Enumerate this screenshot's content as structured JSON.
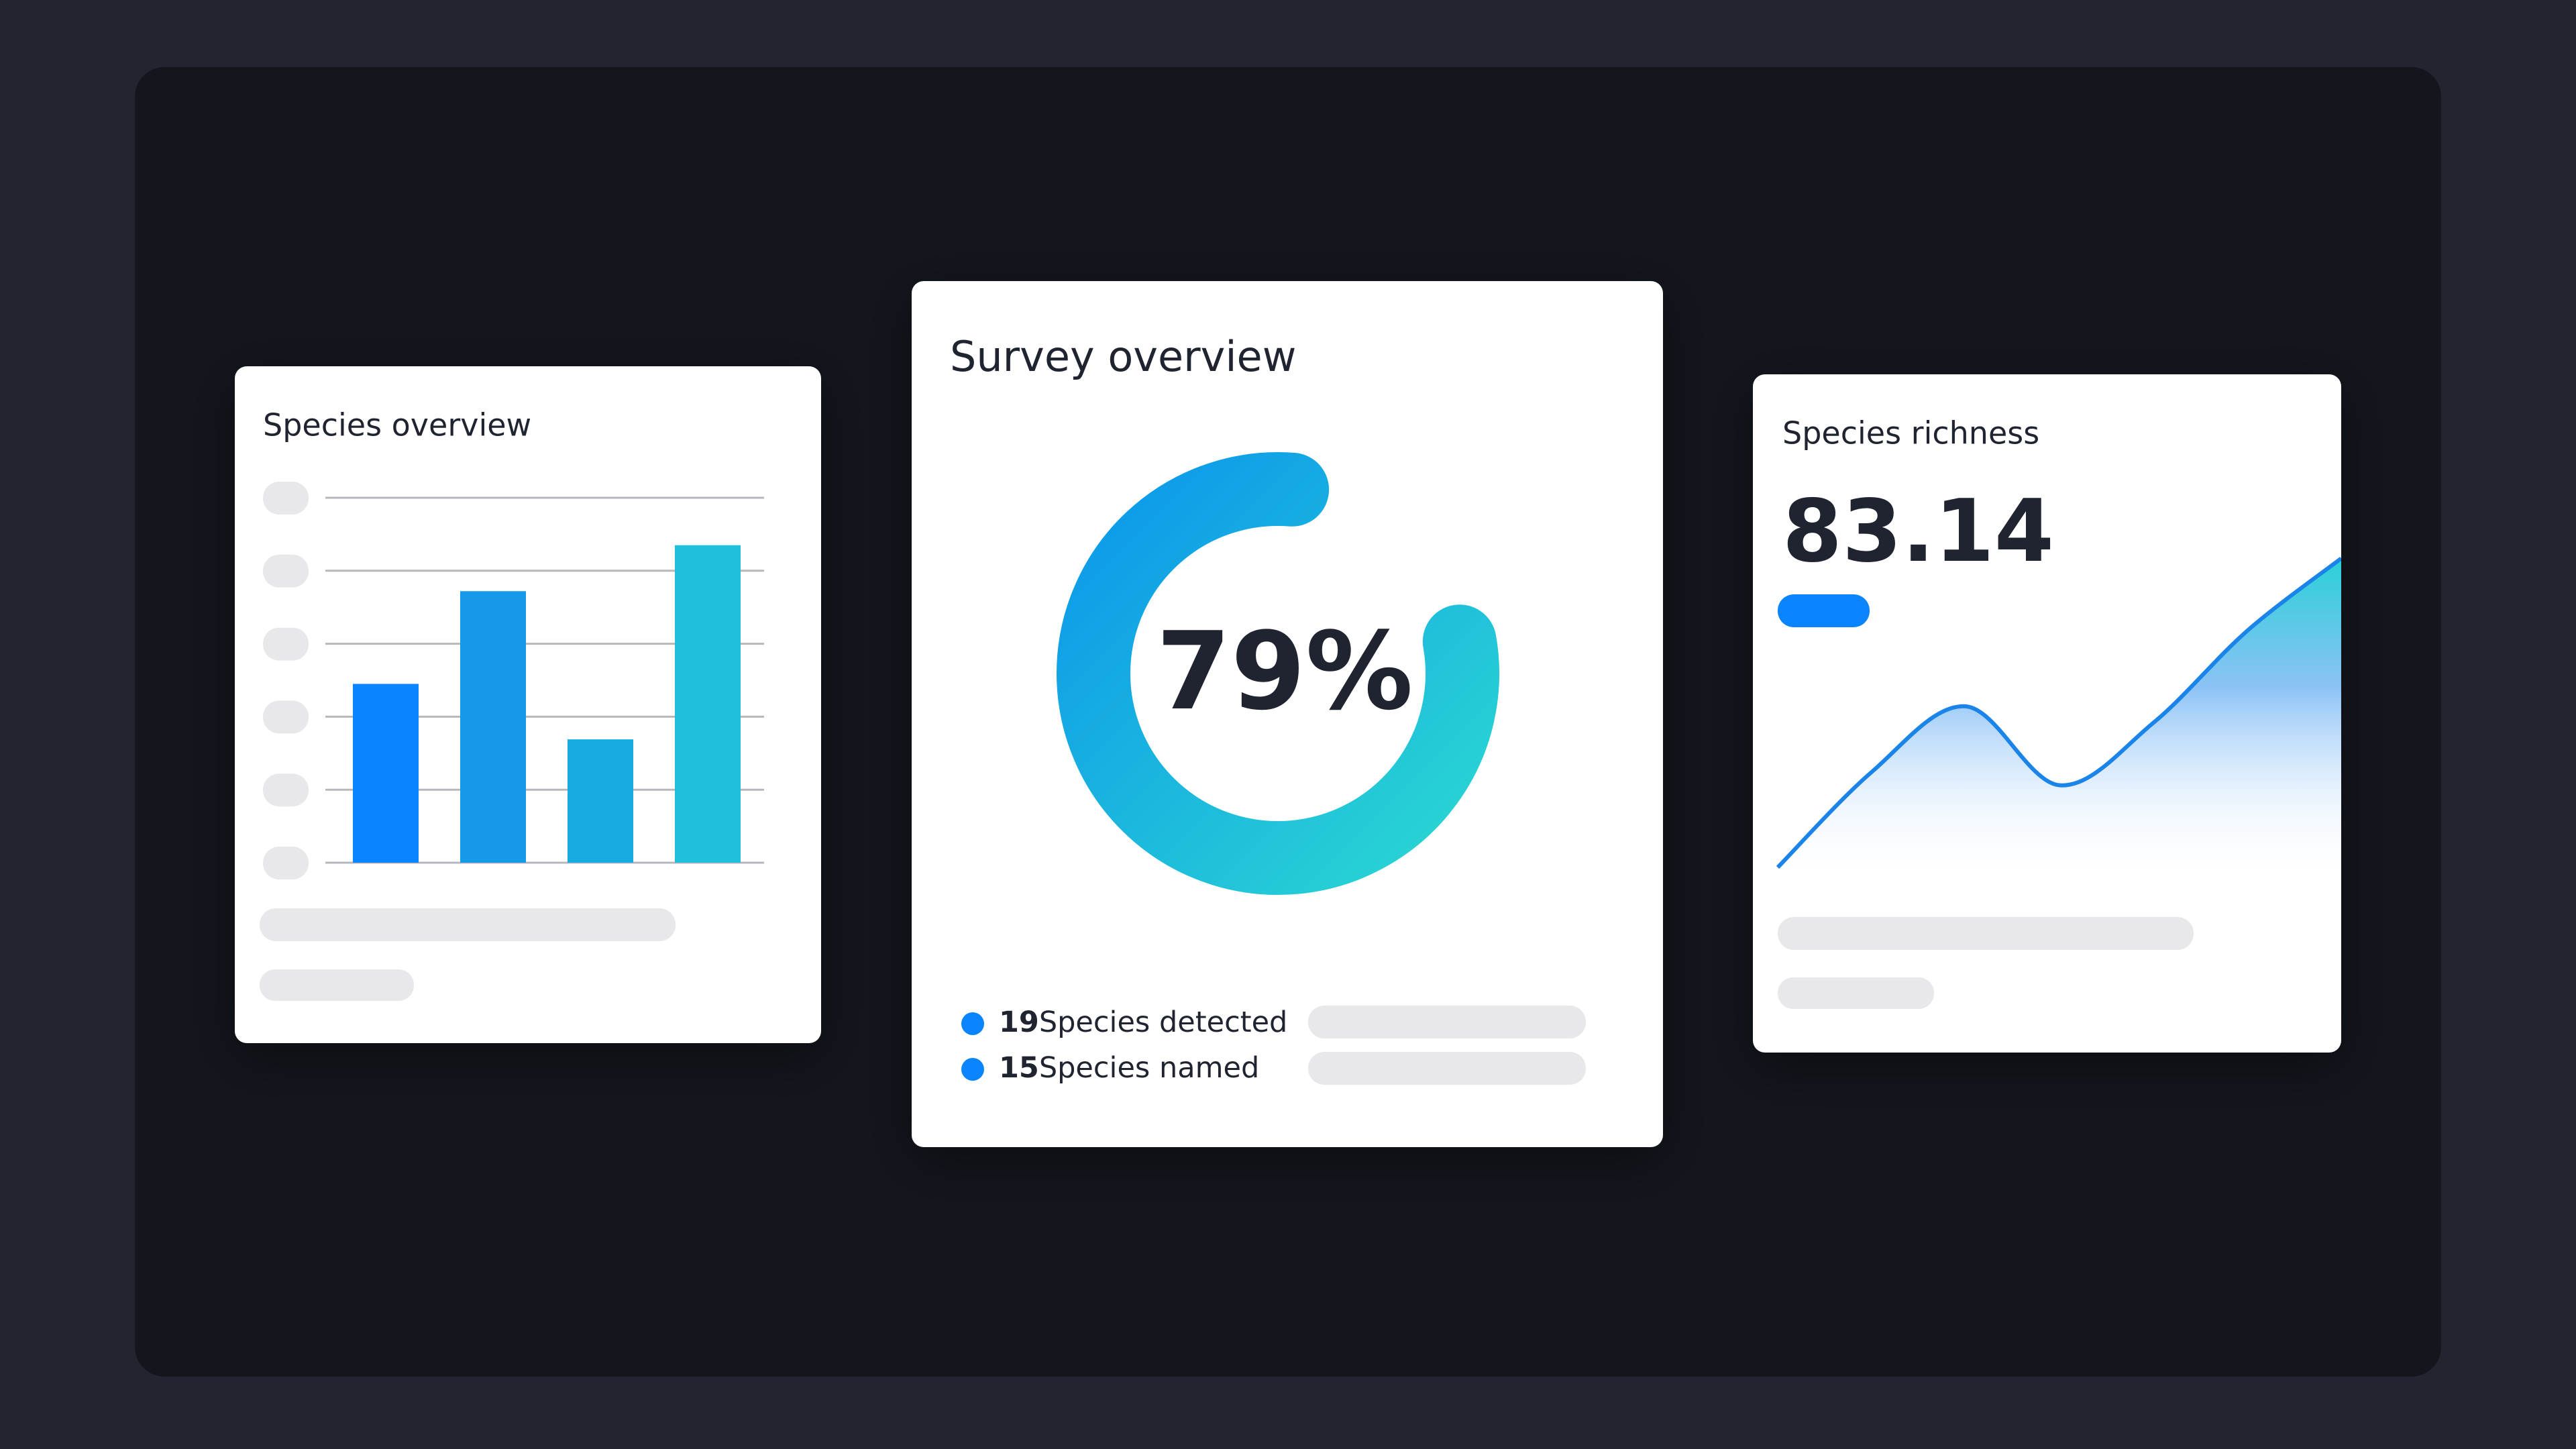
{
  "bar_card": {
    "title": "Species overview",
    "chart": {
      "type": "bar",
      "values": [
        2.45,
        3.72,
        1.69,
        4.35
      ],
      "colors": [
        "#0a84ff",
        "#1599e8",
        "#17abe2",
        "#20c0dc"
      ],
      "ylim": [
        0,
        5
      ],
      "yticks": [
        0,
        1,
        2,
        3,
        4,
        5
      ],
      "grid": true
    }
  },
  "donut_card": {
    "title": "Survey overview",
    "chart": {
      "type": "donut",
      "value": 79,
      "value_label": "79%",
      "colors": [
        "#0c98ea",
        "#2ad6d2"
      ]
    },
    "legend": [
      {
        "value": 19,
        "label": "Species detected",
        "color": "#0a84ff"
      },
      {
        "value": 15,
        "label": "Species named",
        "color": "#0a84ff"
      }
    ]
  },
  "line_card": {
    "title": "Species richness",
    "value": 83.14,
    "chart": {
      "type": "area",
      "values": [
        0,
        2.9,
        4.9,
        2.5,
        4.4,
        7.2,
        9.4
      ],
      "ylim": [
        0,
        10
      ],
      "color": "#1a84e8"
    }
  }
}
